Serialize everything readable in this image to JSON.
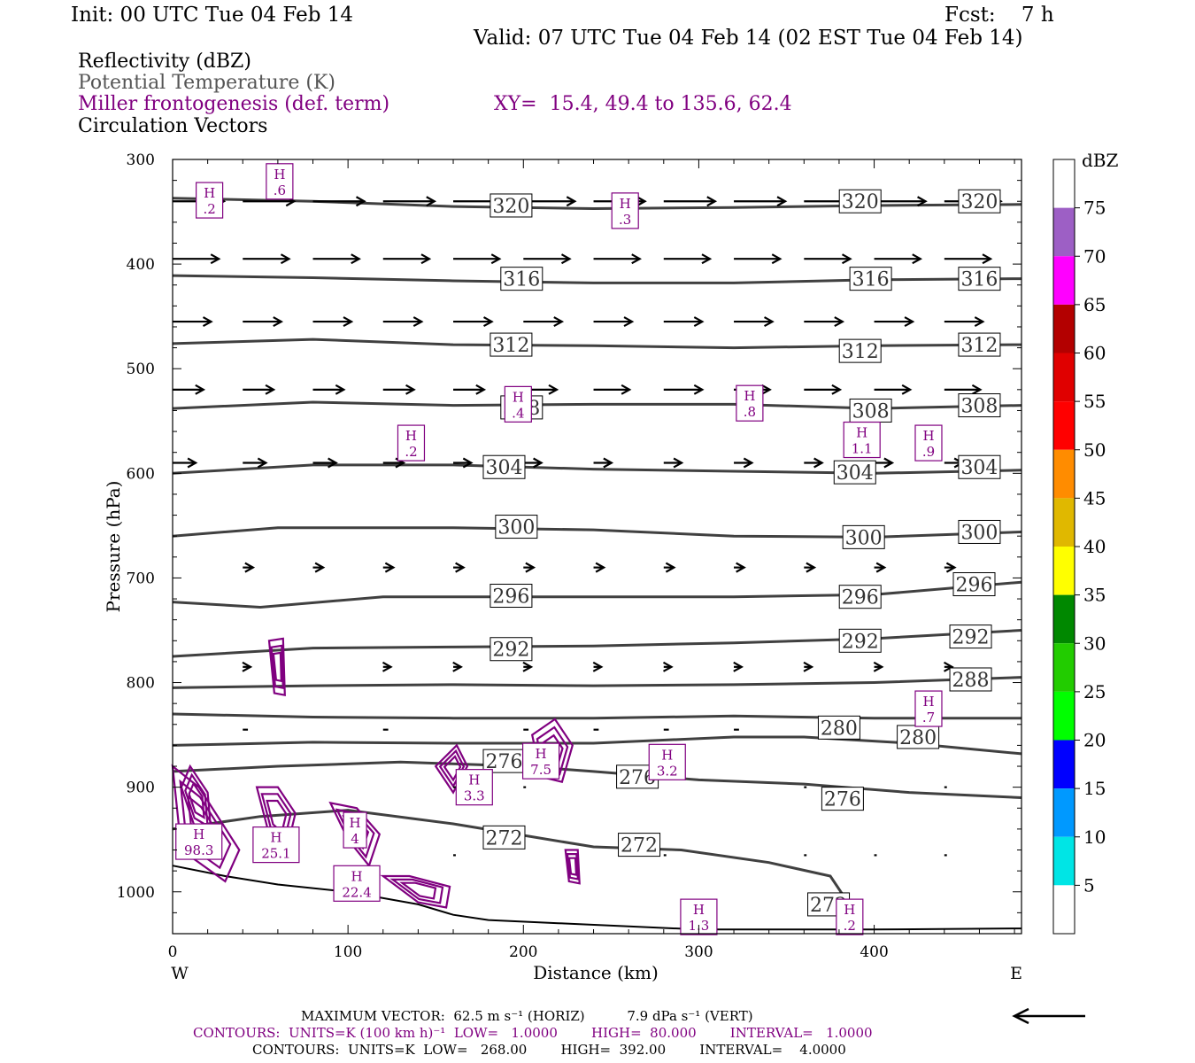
{
  "header": {
    "init": "Init: 00 UTC Tue 04 Feb 14",
    "fcst": "Fcst:    7 h",
    "valid": "Valid: 07 UTC Tue 04 Feb 14 (02 EST Tue 04 Feb 14)"
  },
  "legend": {
    "reflectivity": "Reflectivity (dBZ)",
    "theta": "Potential Temperature (K)",
    "frontogenesis": "Miller frontogenesis (def. term)",
    "xy": "XY=  15.4, 49.4 to 135.6, 62.4",
    "vectors": "Circulation Vectors"
  },
  "colors": {
    "theta_line": "#404040",
    "frontogenesis": "#800080",
    "vector": "#000000",
    "terrain": "#000000"
  },
  "chart_data": {
    "type": "line",
    "xlabel": "Distance (km)",
    "ylabel": "Pressure (hPa)",
    "xlim": [
      0,
      484
    ],
    "ylim": [
      1040,
      300
    ],
    "y_axis_inverted": true,
    "x_ticks": [
      0,
      100,
      200,
      300,
      400
    ],
    "y_ticks": [
      300,
      400,
      500,
      600,
      700,
      800,
      900,
      1000
    ],
    "x_end_labels": [
      "W",
      "E"
    ],
    "theta_contours": [
      {
        "level": 320,
        "points": [
          [
            0,
            337
          ],
          [
            80,
            340
          ],
          [
            160,
            345
          ],
          [
            240,
            347
          ],
          [
            320,
            346
          ],
          [
            400,
            344
          ],
          [
            484,
            343
          ]
        ],
        "labels": [
          [
            193,
            344
          ],
          [
            392,
            340
          ],
          [
            460,
            340
          ]
        ]
      },
      {
        "level": 316,
        "points": [
          [
            0,
            411
          ],
          [
            80,
            413
          ],
          [
            160,
            416
          ],
          [
            240,
            418
          ],
          [
            320,
            418
          ],
          [
            400,
            415
          ],
          [
            484,
            414
          ]
        ],
        "labels": [
          [
            199,
            414
          ],
          [
            398,
            414
          ],
          [
            460,
            414
          ]
        ]
      },
      {
        "level": 312,
        "points": [
          [
            0,
            476
          ],
          [
            80,
            472
          ],
          [
            160,
            477
          ],
          [
            240,
            478
          ],
          [
            320,
            480
          ],
          [
            400,
            478
          ],
          [
            484,
            477
          ]
        ],
        "labels": [
          [
            193,
            477
          ],
          [
            392,
            483
          ],
          [
            460,
            477
          ]
        ]
      },
      {
        "level": 308,
        "points": [
          [
            0,
            538
          ],
          [
            80,
            532
          ],
          [
            160,
            535
          ],
          [
            240,
            534
          ],
          [
            320,
            534
          ],
          [
            400,
            538
          ],
          [
            484,
            535
          ]
        ],
        "labels": [
          [
            199,
            537
          ],
          [
            398,
            540
          ],
          [
            460,
            535
          ]
        ]
      },
      {
        "level": 304,
        "points": [
          [
            0,
            600
          ],
          [
            80,
            592
          ],
          [
            160,
            592
          ],
          [
            240,
            596
          ],
          [
            320,
            598
          ],
          [
            400,
            600
          ],
          [
            484,
            597
          ]
        ],
        "labels": [
          [
            189,
            594
          ],
          [
            389,
            599
          ],
          [
            460,
            594
          ]
        ]
      },
      {
        "level": 300,
        "points": [
          [
            0,
            660
          ],
          [
            60,
            652
          ],
          [
            160,
            652
          ],
          [
            240,
            654
          ],
          [
            320,
            660
          ],
          [
            400,
            661
          ],
          [
            484,
            656
          ]
        ],
        "labels": [
          [
            196,
            651
          ],
          [
            394,
            661
          ],
          [
            460,
            656
          ]
        ]
      },
      {
        "level": 296,
        "points": [
          [
            0,
            723
          ],
          [
            50,
            728
          ],
          [
            120,
            718
          ],
          [
            240,
            718
          ],
          [
            320,
            718
          ],
          [
            400,
            716
          ],
          [
            484,
            704
          ]
        ],
        "labels": [
          [
            193,
            717
          ],
          [
            392,
            718
          ],
          [
            457,
            706
          ]
        ]
      },
      {
        "level": 292,
        "points": [
          [
            0,
            775
          ],
          [
            80,
            767
          ],
          [
            160,
            766
          ],
          [
            240,
            765
          ],
          [
            320,
            762
          ],
          [
            400,
            758
          ],
          [
            484,
            750
          ]
        ],
        "labels": [
          [
            193,
            768
          ],
          [
            392,
            760
          ],
          [
            455,
            756
          ]
        ]
      },
      {
        "level": 288,
        "points": [
          [
            0,
            805
          ],
          [
            80,
            803
          ],
          [
            160,
            802
          ],
          [
            240,
            803
          ],
          [
            320,
            802
          ],
          [
            400,
            800
          ],
          [
            484,
            795
          ]
        ],
        "labels": [
          [
            455,
            797
          ]
        ]
      },
      {
        "level": 284,
        "points": [
          [
            0,
            830
          ],
          [
            80,
            833
          ],
          [
            160,
            834
          ],
          [
            240,
            834
          ],
          [
            320,
            832
          ],
          [
            400,
            834
          ],
          [
            484,
            834
          ]
        ],
        "labels": []
      },
      {
        "level": 280,
        "points": [
          [
            0,
            860
          ],
          [
            80,
            857
          ],
          [
            160,
            858
          ],
          [
            240,
            858
          ],
          [
            320,
            852
          ],
          [
            360,
            852
          ],
          [
            420,
            858
          ],
          [
            484,
            868
          ]
        ],
        "labels": [
          [
            380,
            843
          ],
          [
            425,
            852
          ]
        ]
      },
      {
        "level": 276,
        "points": [
          [
            0,
            885
          ],
          [
            60,
            880
          ],
          [
            130,
            876
          ],
          [
            200,
            880
          ],
          [
            240,
            885
          ],
          [
            300,
            893
          ],
          [
            360,
            897
          ],
          [
            420,
            905
          ],
          [
            484,
            910
          ]
        ],
        "labels": [
          [
            189,
            875
          ],
          [
            265,
            890
          ],
          [
            382,
            911
          ]
        ]
      },
      {
        "level": 272,
        "points": [
          [
            0,
            940
          ],
          [
            50,
            928
          ],
          [
            100,
            922
          ],
          [
            160,
            935
          ],
          [
            200,
            946
          ],
          [
            240,
            957
          ],
          [
            290,
            960
          ],
          [
            340,
            972
          ],
          [
            375,
            985
          ],
          [
            385,
            1010
          ]
        ],
        "labels": [
          [
            189,
            948
          ],
          [
            266,
            955
          ],
          [
            374,
            1012
          ]
        ]
      }
    ],
    "terrain": [
      [
        0,
        975
      ],
      [
        30,
        985
      ],
      [
        60,
        993
      ],
      [
        100,
        1000
      ],
      [
        140,
        1012
      ],
      [
        160,
        1022
      ],
      [
        180,
        1027
      ],
      [
        220,
        1030
      ],
      [
        260,
        1033
      ],
      [
        300,
        1036
      ],
      [
        350,
        1036
      ],
      [
        400,
        1036
      ],
      [
        484,
        1035
      ]
    ],
    "frontogenesis_maxima": [
      {
        "x": 21,
        "p": 339,
        "value": ".2"
      },
      {
        "x": 61,
        "p": 321,
        "value": ".6"
      },
      {
        "x": 258,
        "p": 349,
        "value": ".3"
      },
      {
        "x": 197,
        "p": 534,
        "value": ".4"
      },
      {
        "x": 329,
        "p": 533,
        "value": ".8"
      },
      {
        "x": 136,
        "p": 571,
        "value": ".2"
      },
      {
        "x": 393,
        "p": 568,
        "value": "1.1"
      },
      {
        "x": 431,
        "p": 571,
        "value": ".9"
      },
      {
        "x": 431,
        "p": 825,
        "value": ".7"
      },
      {
        "x": 210,
        "p": 875,
        "value": "7.5"
      },
      {
        "x": 282,
        "p": 876,
        "value": "3.2"
      },
      {
        "x": 172,
        "p": 900,
        "value": "3.3"
      },
      {
        "x": 15,
        "p": 952,
        "value": "98.3"
      },
      {
        "x": 59,
        "p": 955,
        "value": "25.1"
      },
      {
        "x": 105,
        "p": 992,
        "value": "22.4"
      },
      {
        "x": 104,
        "p": 941,
        "value": "4"
      },
      {
        "x": 300,
        "p": 1024,
        "value": "1.3"
      },
      {
        "x": 386,
        "p": 1024,
        "value": ".2"
      }
    ],
    "vector_rows": [
      {
        "p": 340,
        "lengths": [
          [
            0,
            40
          ],
          [
            40,
            40
          ],
          [
            80,
            40
          ],
          [
            120,
            40
          ],
          [
            160,
            40
          ],
          [
            200,
            40
          ],
          [
            240,
            40
          ],
          [
            280,
            40
          ],
          [
            320,
            40
          ],
          [
            360,
            40
          ],
          [
            400,
            40
          ],
          [
            440,
            44
          ]
        ]
      },
      {
        "p": 395,
        "lengths": [
          [
            0,
            36
          ],
          [
            40,
            36
          ],
          [
            80,
            36
          ],
          [
            120,
            36
          ],
          [
            160,
            36
          ],
          [
            200,
            36
          ],
          [
            240,
            36
          ],
          [
            280,
            36
          ],
          [
            320,
            36
          ],
          [
            360,
            36
          ],
          [
            400,
            36
          ],
          [
            440,
            36
          ]
        ]
      },
      {
        "p": 455,
        "lengths": [
          [
            0,
            30
          ],
          [
            40,
            30
          ],
          [
            80,
            30
          ],
          [
            120,
            30
          ],
          [
            160,
            30
          ],
          [
            200,
            30
          ],
          [
            240,
            30
          ],
          [
            280,
            30
          ],
          [
            320,
            30
          ],
          [
            360,
            30
          ],
          [
            400,
            30
          ],
          [
            440,
            30
          ]
        ]
      },
      {
        "p": 520,
        "lengths": [
          [
            0,
            24
          ],
          [
            40,
            24
          ],
          [
            80,
            24
          ],
          [
            120,
            24
          ],
          [
            160,
            24
          ],
          [
            200,
            26
          ],
          [
            240,
            28
          ],
          [
            280,
            30
          ],
          [
            320,
            28
          ],
          [
            360,
            28
          ],
          [
            400,
            28
          ],
          [
            440,
            28
          ]
        ]
      },
      {
        "p": 590,
        "lengths": [
          [
            0,
            18
          ],
          [
            40,
            18
          ],
          [
            80,
            18
          ],
          [
            120,
            16
          ],
          [
            160,
            14
          ],
          [
            200,
            14
          ],
          [
            240,
            14
          ],
          [
            280,
            14
          ],
          [
            320,
            14
          ],
          [
            360,
            14
          ],
          [
            400,
            14
          ],
          [
            440,
            14
          ]
        ]
      },
      {
        "p": 690,
        "lengths": [
          [
            40,
            8
          ],
          [
            80,
            8
          ],
          [
            120,
            8
          ],
          [
            160,
            8
          ],
          [
            200,
            8
          ],
          [
            240,
            8
          ],
          [
            280,
            8
          ],
          [
            320,
            8
          ],
          [
            360,
            8
          ],
          [
            400,
            8
          ],
          [
            440,
            8
          ]
        ]
      },
      {
        "p": 785,
        "lengths": [
          [
            40,
            6
          ],
          [
            120,
            6
          ],
          [
            160,
            6
          ],
          [
            200,
            6
          ],
          [
            240,
            6
          ],
          [
            280,
            6
          ],
          [
            320,
            6
          ],
          [
            360,
            6
          ],
          [
            400,
            6
          ],
          [
            440,
            6
          ]
        ]
      },
      {
        "p": 845,
        "lengths": [
          [
            40,
            4
          ],
          [
            120,
            4
          ],
          [
            200,
            4
          ],
          [
            240,
            4
          ],
          [
            280,
            4
          ],
          [
            320,
            4
          ]
        ]
      },
      {
        "p": 900,
        "lengths": [
          [
            160,
            2
          ],
          [
            200,
            2
          ],
          [
            360,
            2
          ],
          [
            440,
            2
          ]
        ]
      },
      {
        "p": 965,
        "lengths": [
          [
            160,
            2
          ],
          [
            280,
            2
          ],
          [
            360,
            2
          ],
          [
            400,
            2
          ],
          [
            440,
            2
          ]
        ]
      }
    ]
  },
  "colorbar": {
    "unit": "dBZ",
    "ticks": [
      "75",
      "70",
      "65",
      "60",
      "55",
      "50",
      "45",
      "40",
      "35",
      "30",
      "25",
      "20",
      "15",
      "10",
      "5"
    ],
    "colors": [
      "#ffffff",
      "#9d5fc5",
      "#ff00ff",
      "#b30000",
      "#e00000",
      "#ff0000",
      "#ff8c00",
      "#e0b800",
      "#ffff00",
      "#008800",
      "#22cc00",
      "#00ff00",
      "#0000ff",
      "#0099ff",
      "#00e5e5",
      "#ffffff"
    ]
  },
  "footer": {
    "max_vector": "MAXIMUM VECTOR:  62.5 m s⁻¹ (HORIZ)          7.9 dPa s⁻¹ (VERT)",
    "contours1": "CONTOURS:  UNITS=K (100 km h)⁻¹  LOW=   1.0000        HIGH=  80.000        INTERVAL=   1.0000",
    "contours2": "CONTOURS:  UNITS=K  LOW=   268.00        HIGH=  392.00        INTERVAL=    4.0000"
  }
}
